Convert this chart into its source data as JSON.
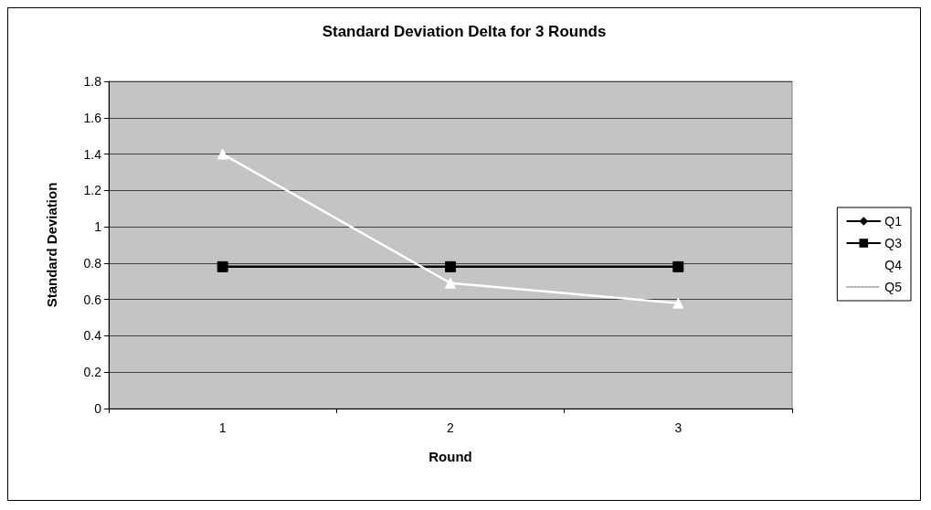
{
  "chart_data": {
    "type": "line",
    "title": "Standard Deviation Delta for 3 Rounds",
    "xlabel": "Round",
    "ylabel": "Standard Deviation",
    "categories": [
      "1",
      "2",
      "3"
    ],
    "series": [
      {
        "name": "Q1",
        "color": "#000000",
        "marker": "diamond",
        "values": [
          null,
          null,
          null
        ]
      },
      {
        "name": "Q3",
        "color": "#000000",
        "marker": "square",
        "values": [
          0.78,
          0.78,
          0.78
        ]
      },
      {
        "name": "Q4",
        "color": "#ffffff",
        "marker": "triangle",
        "values": [
          1.4,
          0.69,
          0.58
        ]
      },
      {
        "name": "Q5",
        "color": "#b0b0b0",
        "marker": "cross",
        "line_style": "dotted",
        "values": [
          null,
          null,
          null
        ]
      }
    ],
    "ylim": [
      0,
      1.8
    ],
    "yticks": [
      0,
      0.2,
      0.4,
      0.6,
      0.8,
      1,
      1.2,
      1.4,
      1.6,
      1.8
    ],
    "grid": "y",
    "legend": "right"
  }
}
